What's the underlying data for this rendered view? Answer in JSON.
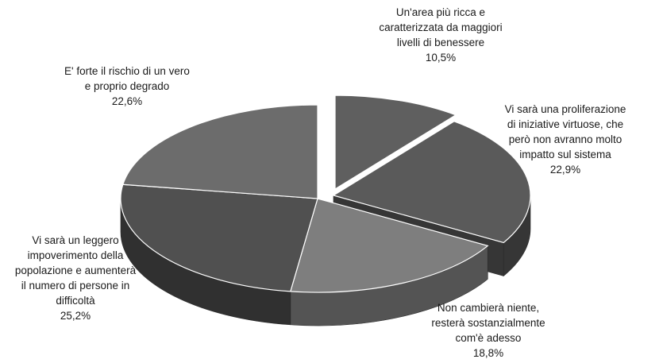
{
  "chart_data": {
    "type": "pie",
    "style": "3d-exploded",
    "colors": {
      "top": [
        "#5f5f5f",
        "#5a5a5a",
        "#7e7e7e",
        "#505050",
        "#6c6c6c"
      ],
      "side": [
        "#3a3a3a",
        "#363636",
        "#545454",
        "#303030",
        "#474747"
      ]
    },
    "slices": [
      {
        "value": 10.5,
        "pct": "10,5%",
        "lines": [
          "Un'area più ricca e",
          "caratterizzata da maggiori",
          "livelli di benessere"
        ]
      },
      {
        "value": 22.9,
        "pct": "22,9%",
        "lines": [
          "Vi sarà una proliferazione",
          "di iniziative virtuose, che",
          "però non avranno molto",
          "impatto sul sistema"
        ]
      },
      {
        "value": 18.8,
        "pct": "18,8%",
        "lines": [
          "Non cambierà niente,",
          "resterà sostanzialmente",
          "com'è adesso"
        ]
      },
      {
        "value": 25.2,
        "pct": "25,2%",
        "lines": [
          "Vi sarà un leggero",
          "impoverimento della",
          "popolazione e aumenterà",
          "il numero di persone in",
          "difficoltà"
        ]
      },
      {
        "value": 22.6,
        "pct": "22,6%",
        "lines": [
          "E' forte il rischio di un vero",
          "e proprio degrado"
        ]
      }
    ]
  }
}
